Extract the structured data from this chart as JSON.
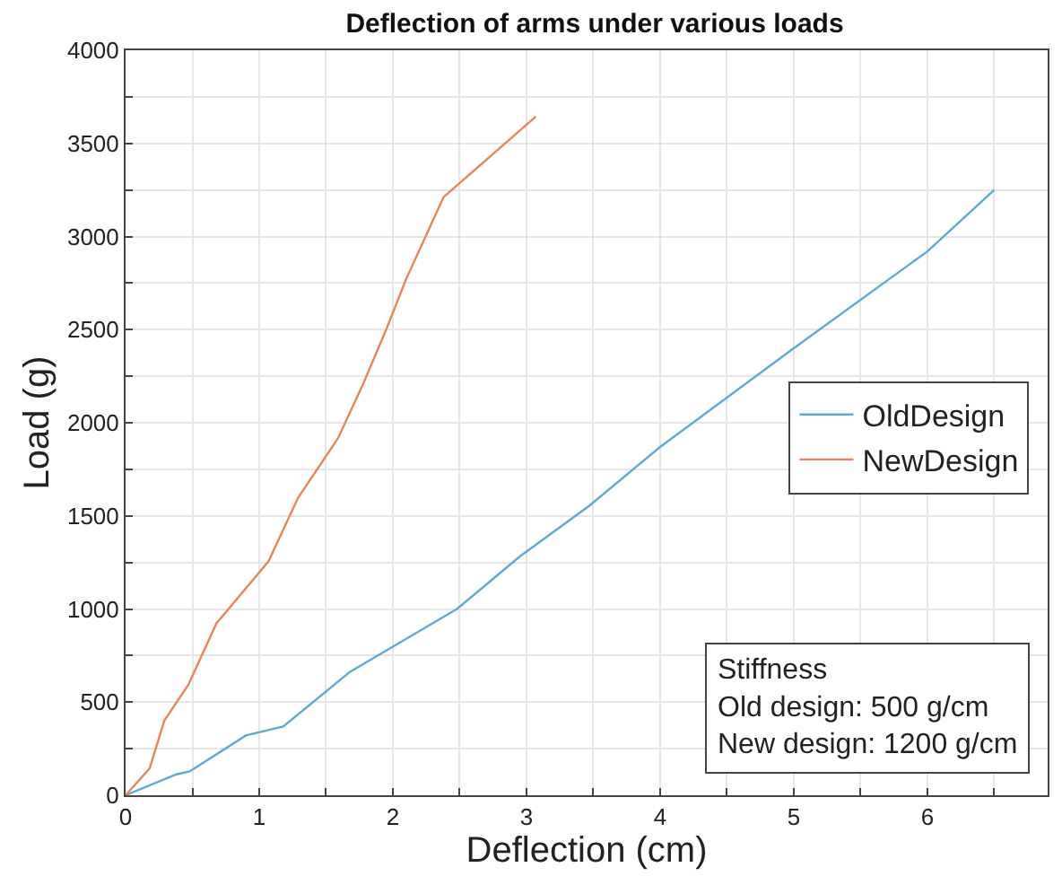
{
  "chart_data": {
    "type": "line",
    "title": "Deflection of arms under various loads",
    "xlabel": "Deflection (cm)",
    "ylabel": "Load (g)",
    "xlim": [
      0,
      6.9
    ],
    "ylim": [
      0,
      4000
    ],
    "xticks": [
      0,
      {
        "value": 0.5,
        "label": null
      },
      1,
      {
        "value": 1.5,
        "label": null
      },
      2,
      {
        "value": 2.5,
        "label": null
      },
      3,
      {
        "value": 3.5,
        "label": null
      },
      4,
      {
        "value": 4.5,
        "label": null
      },
      5,
      {
        "value": 5.5,
        "label": null
      },
      6,
      {
        "value": 6.5,
        "label": null
      }
    ],
    "yticks": [
      0,
      {
        "value": 250,
        "label": null
      },
      500,
      {
        "value": 750,
        "label": null
      },
      1000,
      {
        "value": 1250,
        "label": null
      },
      1500,
      {
        "value": 1750,
        "label": null
      },
      2000,
      {
        "value": 2250,
        "label": null
      },
      2500,
      {
        "value": 2750,
        "label": null
      },
      3000,
      {
        "value": 3250,
        "label": null
      },
      3500,
      {
        "value": 3750,
        "label": null
      },
      4000
    ],
    "grid": true,
    "legend": "right",
    "marker": "none",
    "line_style": "solid",
    "series": [
      {
        "name": "OldDesign",
        "color": "#5ea9d6",
        "x": [
          0,
          0.38,
          0.48,
          0.9,
          1.18,
          1.68,
          2.48,
          2.95,
          3.47,
          4.0,
          5.0,
          6.0,
          6.5
        ],
        "values": [
          0,
          112,
          128,
          321,
          369,
          663,
          1000,
          1282,
          1554,
          1870,
          2400,
          2920,
          3250
        ]
      },
      {
        "name": "NewDesign",
        "color": "#e6875a",
        "x": [
          0,
          0.18,
          0.29,
          0.47,
          0.68,
          1.07,
          1.29,
          1.59,
          1.78,
          1.95,
          2.1,
          2.38,
          3.07
        ],
        "values": [
          0,
          144,
          401,
          593,
          923,
          1256,
          1596,
          1917,
          2212,
          2500,
          2772,
          3212,
          3644
        ]
      }
    ],
    "annotations": [
      "Stiffness\nOld design: 500 g/cm\nNew design: 1200 g/cm"
    ]
  }
}
